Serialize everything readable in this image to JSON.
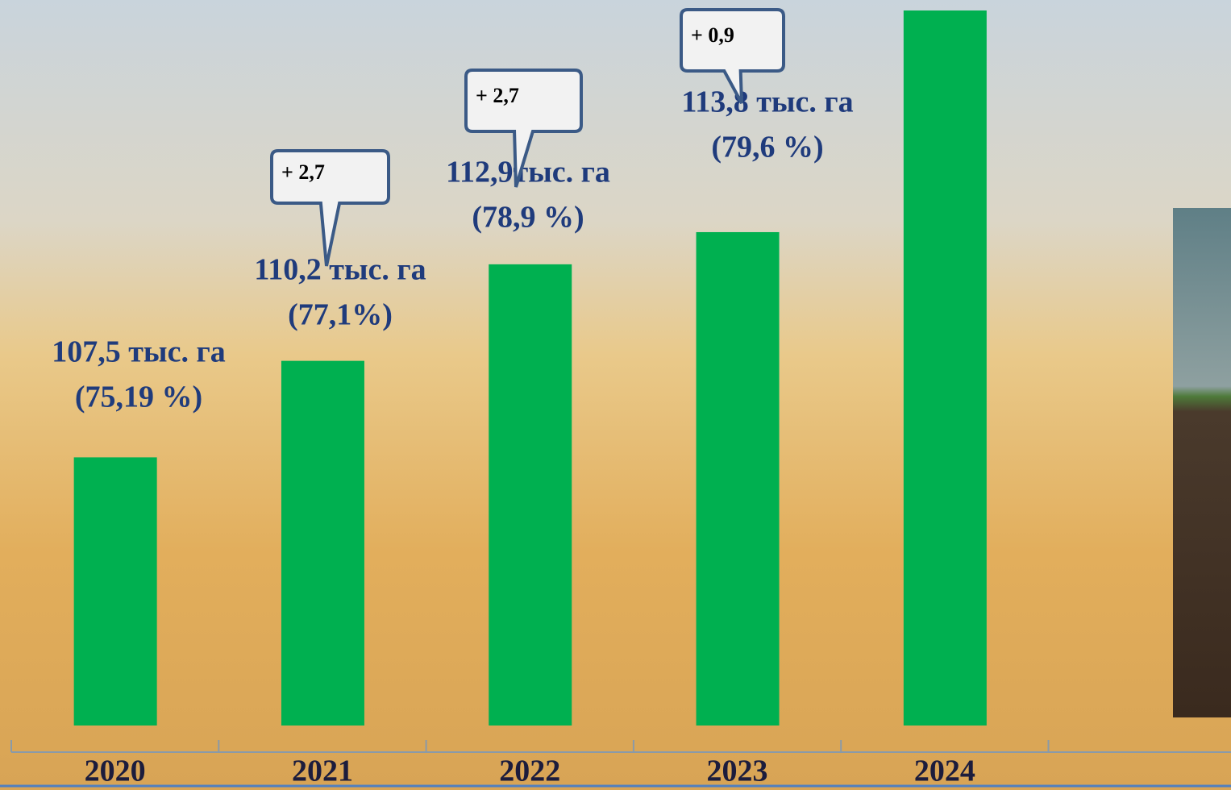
{
  "chart_data": {
    "type": "bar",
    "categories": [
      "2020",
      "2021",
      "2022",
      "2023",
      "2024"
    ],
    "values": [
      107.5,
      110.2,
      112.9,
      113.8,
      120
    ],
    "value_labels": [
      "107,5 тыс. га",
      "110,2 тыс. га",
      "112,9тыс. га",
      "113,8 тыс. га",
      null
    ],
    "share_labels": [
      "(75,19 %)",
      "(77,1%)",
      "(78,9 %)",
      "(79,6 %)",
      null
    ],
    "callouts": [
      null,
      "+ 2,7",
      "+ 2,7",
      "+ 0,9",
      null
    ],
    "color": "#00b050",
    "ylim": [
      100,
      120
    ]
  }
}
